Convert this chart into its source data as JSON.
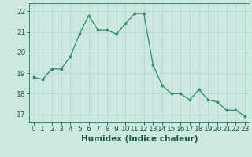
{
  "x": [
    0,
    1,
    2,
    3,
    4,
    5,
    6,
    7,
    8,
    9,
    10,
    11,
    12,
    13,
    14,
    15,
    16,
    17,
    18,
    19,
    20,
    21,
    22,
    23
  ],
  "y": [
    18.8,
    18.7,
    19.2,
    19.2,
    19.8,
    20.9,
    21.8,
    21.1,
    21.1,
    20.9,
    21.4,
    21.9,
    21.9,
    19.4,
    18.4,
    18.0,
    18.0,
    17.7,
    18.2,
    17.7,
    17.6,
    17.2,
    17.2,
    16.9
  ],
  "line_color": "#2e8b6e",
  "marker_color": "#2e8b6e",
  "bg_color": "#cce8e0",
  "grid_color": "#aed4cc",
  "xlabel": "Humidex (Indice chaleur)",
  "xlim": [
    -0.5,
    23.5
  ],
  "ylim": [
    16.6,
    22.4
  ],
  "yticks": [
    17,
    18,
    19,
    20,
    21,
    22
  ],
  "xlabel_fontsize": 7.5,
  "tick_fontsize": 6.5
}
